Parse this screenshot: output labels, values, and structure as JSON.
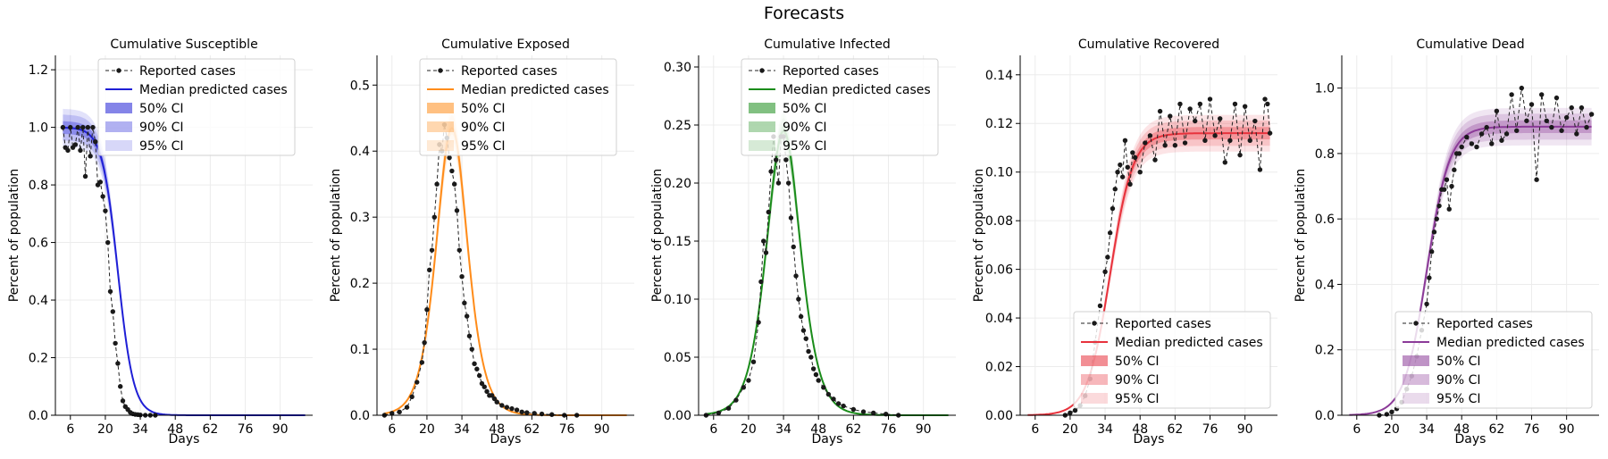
{
  "figure": {
    "title": "Forecasts"
  },
  "chart_data": [
    {
      "type": "line",
      "title": "Cumulative Susceptible",
      "xlabel": "Days",
      "ylabel": "Percent of population",
      "xlim": [
        0,
        103
      ],
      "ylim": [
        0,
        1.25
      ],
      "xticks": [
        6,
        20,
        34,
        48,
        62,
        76,
        90
      ],
      "yticks": [
        0.0,
        0.2,
        0.4,
        0.6,
        0.8,
        1.0,
        1.2
      ],
      "ytick_labels": [
        "0.0",
        "0.2",
        "0.4",
        "0.6",
        "0.8",
        "1.0",
        "1.2"
      ],
      "color": "#1f1fd6",
      "legend_position": "upper-center",
      "legend": [
        "Reported cases",
        "Median predicted cases",
        "50% CI",
        "90% CI",
        "95% CI"
      ],
      "model": {
        "kind": "decay",
        "amp": 1.0,
        "center": 25,
        "k": 0.32
      },
      "series": [
        {
          "name": "Reported cases",
          "x": [
            3,
            4,
            5,
            6,
            7,
            8,
            9,
            10,
            11,
            12,
            13,
            14,
            15,
            16,
            17,
            18,
            19,
            20,
            21,
            22,
            23,
            24,
            25,
            26,
            27,
            28,
            29,
            30,
            31,
            32,
            33,
            34,
            36,
            38,
            40
          ],
          "y": [
            1.0,
            0.93,
            0.92,
            1.0,
            0.93,
            0.94,
            1.0,
            0.92,
            1.0,
            0.83,
            1.0,
            0.9,
            1.0,
            0.95,
            0.8,
            0.81,
            0.76,
            0.71,
            0.6,
            0.43,
            0.36,
            0.25,
            0.18,
            0.1,
            0.05,
            0.03,
            0.02,
            0.01,
            0.005,
            0.003,
            0.002,
            0.001,
            0.0,
            0.0,
            0.0
          ]
        }
      ]
    },
    {
      "type": "line",
      "title": "Cumulative Exposed",
      "xlabel": "Days",
      "ylabel": "Percent of population",
      "xlim": [
        0,
        103
      ],
      "ylim": [
        0,
        0.545
      ],
      "xticks": [
        6,
        20,
        34,
        48,
        62,
        76,
        90
      ],
      "yticks": [
        0.0,
        0.1,
        0.2,
        0.3,
        0.4,
        0.5
      ],
      "ytick_labels": [
        "0.0",
        "0.1",
        "0.2",
        "0.3",
        "0.4",
        "0.5"
      ],
      "color": "#ff8c1a",
      "legend_position": "upper-center",
      "legend": [
        "Reported cases",
        "Median predicted cases",
        "50% CI",
        "90% CI",
        "95% CI"
      ],
      "model": {
        "kind": "peak",
        "amp": 0.435,
        "center": 30,
        "k": 0.24
      },
      "series": [
        {
          "name": "Reported cases",
          "x": [
            3,
            6,
            9,
            12,
            14,
            16,
            18,
            19,
            20,
            21,
            22,
            23,
            24,
            25,
            26,
            27,
            28,
            29,
            30,
            31,
            32,
            33,
            34,
            35,
            36,
            37,
            38,
            39,
            40,
            41,
            42,
            43,
            44,
            45,
            46,
            47,
            48,
            50,
            52,
            54,
            56,
            58,
            60,
            63,
            66,
            70,
            75,
            80
          ],
          "y": [
            0.0,
            0.003,
            0.005,
            0.012,
            0.028,
            0.05,
            0.08,
            0.11,
            0.16,
            0.22,
            0.25,
            0.3,
            0.35,
            0.41,
            0.4,
            0.44,
            0.42,
            0.39,
            0.37,
            0.35,
            0.31,
            0.25,
            0.21,
            0.17,
            0.15,
            0.12,
            0.1,
            0.078,
            0.07,
            0.06,
            0.048,
            0.043,
            0.036,
            0.03,
            0.03,
            0.025,
            0.02,
            0.015,
            0.012,
            0.01,
            0.008,
            0.005,
            0.004,
            0.003,
            0.002,
            0.001,
            0.0,
            0.0
          ]
        }
      ]
    },
    {
      "type": "line",
      "title": "Cumulative Infected",
      "xlabel": "Days",
      "ylabel": "Percent of population",
      "xlim": [
        0,
        103
      ],
      "ylim": [
        0,
        0.31
      ],
      "xticks": [
        6,
        20,
        34,
        48,
        62,
        76,
        90
      ],
      "yticks": [
        0.0,
        0.05,
        0.1,
        0.15,
        0.2,
        0.25,
        0.3
      ],
      "ytick_labels": [
        "0.00",
        "0.05",
        "0.10",
        "0.15",
        "0.20",
        "0.25",
        "0.30"
      ],
      "color": "#1a8c1a",
      "legend_position": "upper-center",
      "legend": [
        "Reported cases",
        "Median predicted cases",
        "50% CI",
        "90% CI",
        "95% CI"
      ],
      "model": {
        "kind": "peak",
        "amp": 0.245,
        "center": 34,
        "k": 0.22
      },
      "series": [
        {
          "name": "Reported cases",
          "x": [
            3,
            8,
            12,
            15,
            18,
            20,
            22,
            24,
            25,
            26,
            27,
            28,
            29,
            30,
            31,
            32,
            33,
            34,
            35,
            36,
            37,
            38,
            39,
            40,
            41,
            42,
            43,
            44,
            45,
            46,
            47,
            48,
            50,
            52,
            54,
            56,
            58,
            62,
            66,
            70,
            75,
            80
          ],
          "y": [
            0.0,
            0.002,
            0.006,
            0.013,
            0.024,
            0.03,
            0.046,
            0.08,
            0.115,
            0.15,
            0.14,
            0.175,
            0.21,
            0.24,
            0.22,
            0.2,
            0.24,
            0.24,
            0.22,
            0.2,
            0.17,
            0.145,
            0.12,
            0.1,
            0.085,
            0.073,
            0.066,
            0.055,
            0.05,
            0.04,
            0.035,
            0.03,
            0.024,
            0.018,
            0.014,
            0.01,
            0.008,
            0.005,
            0.003,
            0.002,
            0.001,
            0.0
          ]
        }
      ]
    },
    {
      "type": "line",
      "title": "Cumulative Recovered",
      "xlabel": "Days",
      "ylabel": "Percent of population",
      "xlim": [
        0,
        103
      ],
      "ylim": [
        0,
        0.148
      ],
      "xticks": [
        6,
        20,
        34,
        48,
        62,
        76,
        90
      ],
      "yticks": [
        0.0,
        0.02,
        0.04,
        0.06,
        0.08,
        0.1,
        0.12,
        0.14
      ],
      "ytick_labels": [
        "0.00",
        "0.02",
        "0.04",
        "0.06",
        "0.08",
        "0.10",
        "0.12",
        "0.14"
      ],
      "color": "#e8323c",
      "legend_position": "lower-right",
      "legend": [
        "Reported cases",
        "Median predicted cases",
        "50% CI",
        "90% CI",
        "95% CI"
      ],
      "model": {
        "kind": "rise",
        "amp": 0.116,
        "center": 36,
        "k": 0.22
      },
      "series": [
        {
          "name": "Reported cases",
          "x": [
            18,
            20,
            22,
            24,
            26,
            28,
            30,
            32,
            34,
            35,
            36,
            37,
            38,
            39,
            40,
            41,
            42,
            43,
            44,
            45,
            46,
            48,
            50,
            52,
            54,
            56,
            58,
            60,
            62,
            64,
            66,
            68,
            70,
            72,
            74,
            76,
            78,
            80,
            82,
            84,
            86,
            88,
            90,
            92,
            94,
            96,
            98,
            99,
            100
          ],
          "y": [
            0.0,
            0.001,
            0.002,
            0.004,
            0.008,
            0.015,
            0.03,
            0.045,
            0.059,
            0.065,
            0.075,
            0.085,
            0.093,
            0.1,
            0.103,
            0.098,
            0.113,
            0.102,
            0.095,
            0.108,
            0.106,
            0.1,
            0.112,
            0.115,
            0.105,
            0.125,
            0.111,
            0.123,
            0.111,
            0.128,
            0.112,
            0.126,
            0.121,
            0.128,
            0.113,
            0.13,
            0.115,
            0.122,
            0.104,
            0.113,
            0.128,
            0.107,
            0.127,
            0.113,
            0.121,
            0.101,
            0.13,
            0.128,
            0.116
          ]
        }
      ]
    },
    {
      "type": "line",
      "title": "Cumulative Dead",
      "xlabel": "Days",
      "ylabel": "Percent of population",
      "xlim": [
        0,
        103
      ],
      "ylim": [
        0,
        1.1
      ],
      "xticks": [
        6,
        20,
        34,
        48,
        62,
        76,
        90
      ],
      "yticks": [
        0.0,
        0.2,
        0.4,
        0.6,
        0.8,
        1.0
      ],
      "ytick_labels": [
        "0.0",
        "0.2",
        "0.4",
        "0.6",
        "0.8",
        "1.0"
      ],
      "color": "#8b3a98",
      "legend_position": "lower-right",
      "legend": [
        "Reported cases",
        "Median predicted cases",
        "50% CI",
        "90% CI",
        "95% CI"
      ],
      "model": {
        "kind": "rise",
        "amp": 0.882,
        "center": 34,
        "k": 0.22
      },
      "series": [
        {
          "name": "Reported cases",
          "x": [
            15,
            18,
            20,
            22,
            24,
            26,
            28,
            30,
            32,
            34,
            35,
            36,
            37,
            38,
            39,
            40,
            41,
            42,
            43,
            44,
            45,
            46,
            47,
            48,
            50,
            52,
            54,
            56,
            58,
            60,
            62,
            64,
            66,
            68,
            70,
            72,
            74,
            76,
            78,
            80,
            82,
            84,
            86,
            88,
            90,
            92,
            94,
            96,
            98,
            100
          ],
          "y": [
            0.0,
            0.003,
            0.01,
            0.02,
            0.04,
            0.08,
            0.12,
            0.18,
            0.26,
            0.34,
            0.42,
            0.5,
            0.56,
            0.6,
            0.64,
            0.69,
            0.69,
            0.72,
            0.63,
            0.7,
            0.75,
            0.8,
            0.8,
            0.82,
            0.85,
            0.83,
            0.82,
            0.86,
            0.88,
            0.83,
            0.93,
            0.84,
            0.86,
            0.98,
            0.87,
            1.0,
            0.9,
            0.95,
            0.72,
            0.98,
            0.9,
            0.88,
            0.97,
            0.87,
            0.91,
            0.94,
            0.86,
            0.94,
            0.88,
            0.92
          ]
        }
      ]
    }
  ]
}
